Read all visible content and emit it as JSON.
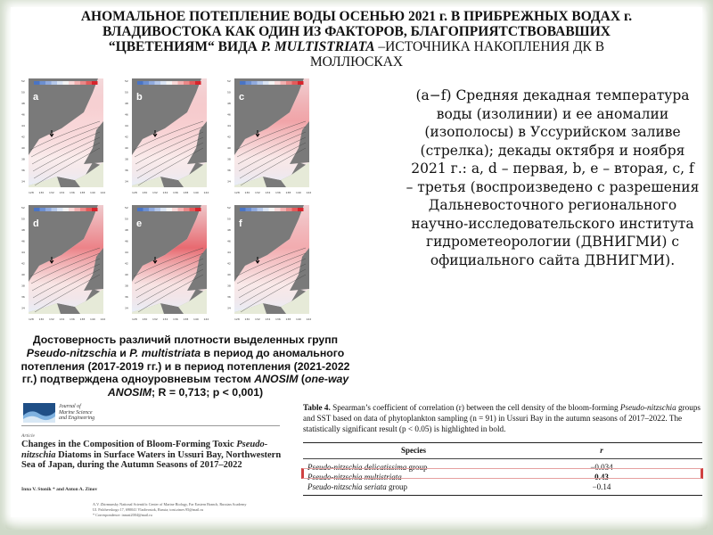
{
  "title": {
    "line1": "АНОМАЛЬНОЕ ПОТЕПЛЕНИЕ ВОДЫ ОСЕНЬЮ 2021 г. В ПРИБРЕЖНЫХ ВОДАХ г.",
    "line2": "ВЛАДИВОСТОКА КАК ОДИН ИЗ ФАКТОРОВ, БЛАГОПРИЯТСТВОВАВШИХ",
    "line3_bold": "“ЦВЕТЕНИЯМ“ ВИДА ",
    "line3_italic": "P. MULTISTRIATA",
    "line3_rest": " –ИСТОЧНИКА НАКОПЛЕНИЯ ДК В",
    "line4": "МОЛЛЮСКАХ"
  },
  "maps": {
    "panels": [
      {
        "label": "a",
        "warming": 0.25
      },
      {
        "label": "b",
        "warming": 0.3
      },
      {
        "label": "c",
        "warming": 0.55
      },
      {
        "label": "d",
        "warming": 0.75
      },
      {
        "label": "e",
        "warming": 0.9
      },
      {
        "label": "f",
        "warming": 0.5
      }
    ],
    "colorbar_ticks": [
      "-5",
      "-4",
      "-3",
      "-2",
      "-1",
      "0",
      "1",
      "2",
      "3",
      "4",
      "5"
    ],
    "lat_ticks": [
      "52",
      "50",
      "48",
      "46",
      "44",
      "42",
      "40",
      "38",
      "36",
      "34"
    ],
    "lon_ticks": [
      "128",
      "130",
      "132",
      "134",
      "136",
      "138",
      "140",
      "142"
    ],
    "colors": {
      "land": "#7a7a7a",
      "far_land": "#e6ead8",
      "warm": "#e0303a",
      "cold": "#6c8fd0"
    }
  },
  "description": "(a−f) Средняя декадная температура воды (изолинии) и ее аномалии (изополосы) в Уссурийском заливе (стрелка); декады октября и ноября 2021 г.: a, d – первая, b, e – вторая, c, f – третья (воспроизведено с разрешения Дальневосточного регионального научно-исследовательского института гидрометеорологии (ДВНИГМИ) с официального сайта ДВНИГМИ).",
  "anosim": {
    "p1": "Достоверность различий плотности выделенных групп ",
    "p2_italic": "Pseudo-nitzschia",
    "p3": " и ",
    "p4_italic": "P. multistriata",
    "p5": "  в период до аномального потепления (2017-2019 гг.) и в период потепления (2021-2022 гг.)  подтверждена одноуровневым тестом ",
    "p6_italic": "ANOSIM",
    "p7": " (",
    "p8_italic": "one-way ANOSIM",
    "p9": "; R = 0,713; p < 0,001)"
  },
  "article": {
    "journal_line1": "Journal of",
    "journal_line2": "Marine Science",
    "journal_line3": "and Engineering",
    "type": "Article",
    "title_1": "Changes in the Composition of Bloom-Forming Toxic ",
    "title_italic": "Pseudo-nitzschia",
    "title_2": " Diatoms in Surface Waters in Ussuri Bay, Northwestern Sea of Japan, during the Autumn Seasons of 2017–2022",
    "authors": "Inna V. Stonik * and Anton A. Zinov",
    "affil1": "A.V. Zhirmunsky National Scientific Center of Marine Biology, Far Eastern Branch, Russian Academy",
    "affil2": "Ul. Palchevskogo 17, 690041 Vladivostok, Russia; toni.zinov.95@mail.ru",
    "affil3": "* Correspondence: innast2004@mail.ru"
  },
  "table": {
    "caption_bold": "Table 4.",
    "caption_1": " Spearman’s coefficient of correlation (r) between the cell density of the bloom-forming ",
    "caption_italic": "Pseudo-nitzschia",
    "caption_2": " groups and SST based on data of phytoplankton sampling (n = 91) in Ussuri Bay in the autumn seasons of 2017–2022. The statistically significant result (p < 0.05) is highlighted in bold.",
    "headers": [
      "Species",
      "r"
    ],
    "rows": [
      {
        "species_italic": "Pseudo-nitzschia delicatissima",
        "suffix": " group",
        "r": "−0.034",
        "highlight": false
      },
      {
        "species_italic": "Pseudo-nitzschia multistriata",
        "suffix": "",
        "r": "0.43",
        "highlight": true
      },
      {
        "species_italic": "Pseudo-nitzschia seriata",
        "suffix": " group",
        "r": "−0.14",
        "highlight": false
      }
    ]
  }
}
